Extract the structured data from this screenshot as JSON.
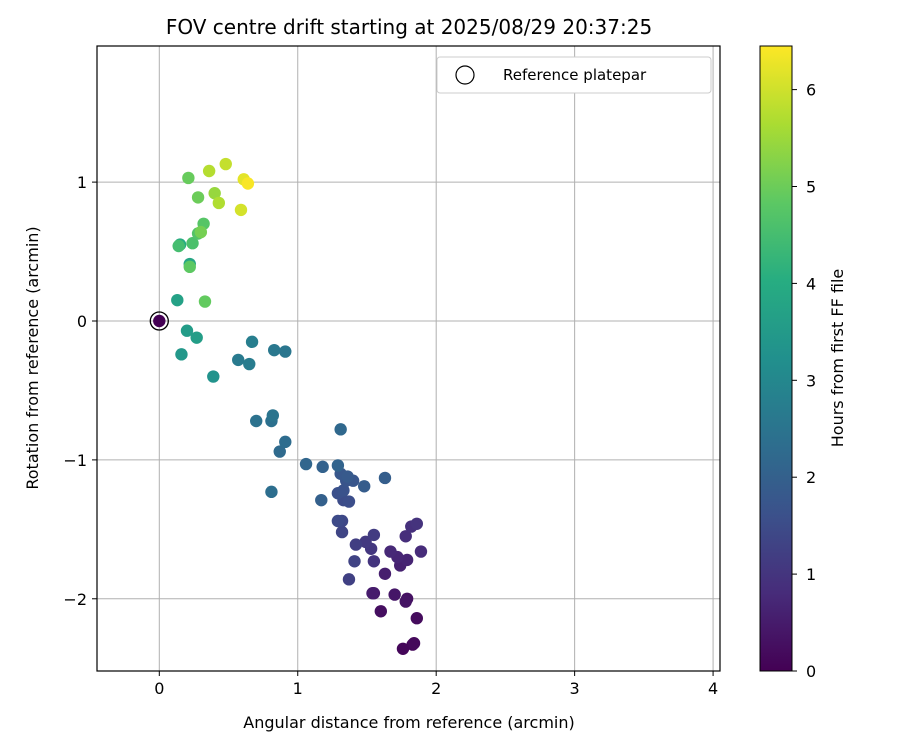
{
  "chart_data": {
    "type": "scatter",
    "title": "FOV centre drift starting at 2025/08/29 20:37:25",
    "xlabel": "Angular distance from reference (arcmin)",
    "ylabel": "Rotation from reference (arcmin)",
    "xlim": [
      -0.45,
      4.05
    ],
    "ylim": [
      -2.52,
      1.98
    ],
    "xticks": [
      0,
      1,
      2,
      3,
      4
    ],
    "yticks": [
      -2,
      -1,
      0,
      1
    ],
    "grid": true,
    "legend": {
      "placement": "top-right",
      "entries": [
        "Reference platepar"
      ]
    },
    "colorbar": {
      "label": "Hours from first FF file",
      "min": 0,
      "max": 6.45,
      "ticks": [
        0,
        1,
        2,
        3,
        4,
        5,
        6
      ],
      "colormap": "viridis"
    },
    "reference_point": {
      "x": 0,
      "y": 0
    },
    "points": [
      {
        "x": 0.0,
        "y": 0.0,
        "c": 0.0
      },
      {
        "x": 1.76,
        "y": -2.36,
        "c": 0.1
      },
      {
        "x": 1.83,
        "y": -2.33,
        "c": 0.1
      },
      {
        "x": 1.84,
        "y": -2.32,
        "c": 0.15
      },
      {
        "x": 1.86,
        "y": -2.14,
        "c": 0.2
      },
      {
        "x": 1.6,
        "y": -2.09,
        "c": 0.25
      },
      {
        "x": 1.79,
        "y": -2.0,
        "c": 0.3
      },
      {
        "x": 1.78,
        "y": -2.02,
        "c": 0.35
      },
      {
        "x": 1.7,
        "y": -1.97,
        "c": 0.4
      },
      {
        "x": 1.55,
        "y": -1.96,
        "c": 0.45
      },
      {
        "x": 1.54,
        "y": -1.96,
        "c": 0.5
      },
      {
        "x": 1.63,
        "y": -1.82,
        "c": 0.55
      },
      {
        "x": 1.74,
        "y": -1.76,
        "c": 0.6
      },
      {
        "x": 1.79,
        "y": -1.72,
        "c": 0.65
      },
      {
        "x": 1.72,
        "y": -1.7,
        "c": 0.7
      },
      {
        "x": 1.67,
        "y": -1.66,
        "c": 0.75
      },
      {
        "x": 1.89,
        "y": -1.66,
        "c": 0.8
      },
      {
        "x": 1.78,
        "y": -1.55,
        "c": 0.85
      },
      {
        "x": 1.82,
        "y": -1.48,
        "c": 0.9
      },
      {
        "x": 1.86,
        "y": -1.46,
        "c": 0.95
      },
      {
        "x": 1.55,
        "y": -1.73,
        "c": 1.0
      },
      {
        "x": 1.53,
        "y": -1.64,
        "c": 1.05
      },
      {
        "x": 1.49,
        "y": -1.59,
        "c": 1.1
      },
      {
        "x": 1.55,
        "y": -1.54,
        "c": 1.15
      },
      {
        "x": 1.42,
        "y": -1.61,
        "c": 1.2
      },
      {
        "x": 1.37,
        "y": -1.86,
        "c": 1.25
      },
      {
        "x": 1.41,
        "y": -1.73,
        "c": 1.3
      },
      {
        "x": 1.32,
        "y": -1.52,
        "c": 1.35
      },
      {
        "x": 1.32,
        "y": -1.44,
        "c": 1.4
      },
      {
        "x": 1.29,
        "y": -1.44,
        "c": 1.45
      },
      {
        "x": 1.33,
        "y": -1.29,
        "c": 1.5
      },
      {
        "x": 1.37,
        "y": -1.3,
        "c": 1.55
      },
      {
        "x": 1.29,
        "y": -1.24,
        "c": 1.6
      },
      {
        "x": 1.33,
        "y": -1.22,
        "c": 1.65
      },
      {
        "x": 1.35,
        "y": -1.15,
        "c": 1.7
      },
      {
        "x": 1.4,
        "y": -1.15,
        "c": 1.75
      },
      {
        "x": 1.31,
        "y": -1.1,
        "c": 1.8
      },
      {
        "x": 1.36,
        "y": -1.12,
        "c": 1.85
      },
      {
        "x": 1.48,
        "y": -1.19,
        "c": 1.9
      },
      {
        "x": 1.63,
        "y": -1.13,
        "c": 1.95
      },
      {
        "x": 1.17,
        "y": -1.29,
        "c": 2.0
      },
      {
        "x": 1.18,
        "y": -1.05,
        "c": 2.05
      },
      {
        "x": 1.29,
        "y": -1.04,
        "c": 2.1
      },
      {
        "x": 1.06,
        "y": -1.03,
        "c": 2.15
      },
      {
        "x": 1.31,
        "y": -0.78,
        "c": 2.2
      },
      {
        "x": 0.87,
        "y": -0.94,
        "c": 2.25
      },
      {
        "x": 0.91,
        "y": -0.87,
        "c": 2.3
      },
      {
        "x": 0.81,
        "y": -1.23,
        "c": 2.35
      },
      {
        "x": 0.81,
        "y": -0.72,
        "c": 2.4
      },
      {
        "x": 0.7,
        "y": -0.72,
        "c": 2.45
      },
      {
        "x": 0.82,
        "y": -0.68,
        "c": 2.5
      },
      {
        "x": 0.91,
        "y": -0.22,
        "c": 2.55
      },
      {
        "x": 0.83,
        "y": -0.21,
        "c": 2.6
      },
      {
        "x": 0.57,
        "y": -0.28,
        "c": 2.65
      },
      {
        "x": 0.65,
        "y": -0.31,
        "c": 2.7
      },
      {
        "x": 0.67,
        "y": -0.15,
        "c": 2.75
      },
      {
        "x": 0.39,
        "y": -0.4,
        "c": 3.3
      },
      {
        "x": 0.16,
        "y": -0.24,
        "c": 3.45
      },
      {
        "x": 0.2,
        "y": -0.07,
        "c": 3.55
      },
      {
        "x": 0.27,
        "y": -0.12,
        "c": 3.6
      },
      {
        "x": 0.13,
        "y": 0.15,
        "c": 3.7
      },
      {
        "x": 0.22,
        "y": 0.41,
        "c": 3.85
      },
      {
        "x": 0.15,
        "y": 0.55,
        "c": 4.0
      },
      {
        "x": 0.14,
        "y": 0.54,
        "c": 4.5
      },
      {
        "x": 0.24,
        "y": 0.56,
        "c": 4.6
      },
      {
        "x": 0.28,
        "y": 0.63,
        "c": 4.7
      },
      {
        "x": 0.32,
        "y": 0.7,
        "c": 4.75
      },
      {
        "x": 0.22,
        "y": 0.39,
        "c": 4.85
      },
      {
        "x": 0.33,
        "y": 0.14,
        "c": 4.9
      },
      {
        "x": 0.21,
        "y": 1.03,
        "c": 4.95
      },
      {
        "x": 0.28,
        "y": 0.89,
        "c": 5.0
      },
      {
        "x": 0.3,
        "y": 0.64,
        "c": 5.1
      },
      {
        "x": 0.4,
        "y": 0.92,
        "c": 5.45
      },
      {
        "x": 0.43,
        "y": 0.85,
        "c": 5.7
      },
      {
        "x": 0.36,
        "y": 1.08,
        "c": 5.75
      },
      {
        "x": 0.48,
        "y": 1.13,
        "c": 5.9
      },
      {
        "x": 0.59,
        "y": 0.8,
        "c": 6.05
      },
      {
        "x": 0.61,
        "y": 1.02,
        "c": 6.2
      },
      {
        "x": 0.64,
        "y": 0.99,
        "c": 6.4
      }
    ]
  }
}
